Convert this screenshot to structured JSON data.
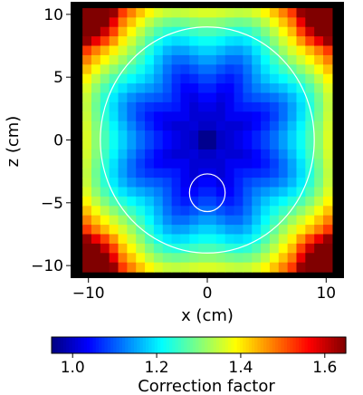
{
  "chart_data": {
    "type": "heatmap",
    "title": "",
    "xlabel": "x (cm)",
    "ylabel": "z (cm)",
    "xlim": [
      -11.5,
      11.5
    ],
    "ylim": [
      -11.0,
      11.0
    ],
    "x_ticks": [
      -10,
      0,
      10
    ],
    "x_tick_labels": [
      "−10",
      "0",
      "10"
    ],
    "y_ticks": [
      10,
      5,
      0,
      -5,
      -10
    ],
    "y_tick_labels": [
      "10",
      "5",
      "0",
      "−5",
      "−10"
    ],
    "grid": false,
    "legend": "none",
    "field": {
      "description_values": "correction factor sampled on a coarse grid; value 1.0 near center rising to ~1.65 at corners",
      "center_value": 1.0,
      "max_value": 1.65,
      "x_extent": [
        -10.5,
        10.5
      ],
      "z_extent": [
        -10.5,
        10.5
      ]
    },
    "outer_circle": {
      "center": [
        0,
        0
      ],
      "radius": 9.0,
      "color": "#ffffff"
    },
    "insert_circle": {
      "center": [
        0,
        -4.2
      ],
      "radius": 1.5,
      "color": "#ffffff"
    },
    "frame_color": "#000000",
    "colorbar": {
      "label": "Correction factor",
      "orientation": "horizontal",
      "min": 0.95,
      "max": 1.65,
      "ticks": [
        1.0,
        1.2,
        1.4,
        1.6
      ],
      "tick_labels": [
        "1.0",
        "1.2",
        "1.4",
        "1.6"
      ],
      "colormap": "jet"
    }
  }
}
